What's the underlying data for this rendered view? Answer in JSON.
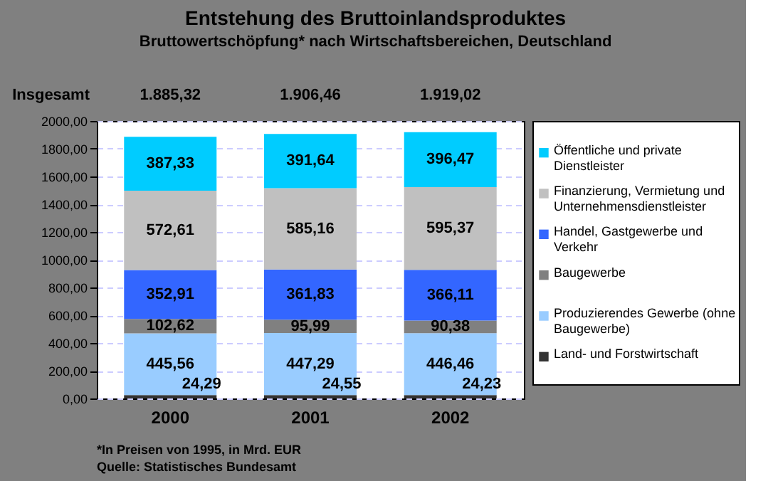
{
  "chart_data": {
    "type": "bar",
    "stacked": true,
    "title": "Entstehung des Bruttoinlandsproduktes",
    "subtitle": "Bruttowertschöpfung* nach Wirtschaftsbereichen, Deutschland",
    "categories": [
      "2000",
      "2001",
      "2002"
    ],
    "series": [
      {
        "name": "Land- und Forstwirtschaft",
        "color": "#333333",
        "values": [
          24.29,
          24.55,
          24.23
        ],
        "value_labels": [
          "24,29",
          "24,55",
          "24,23"
        ]
      },
      {
        "name": "Produzierendes Gewerbe (ohne Baugewerbe)",
        "color": "#99ccff",
        "values": [
          445.56,
          447.29,
          446.46
        ],
        "value_labels": [
          "445,56",
          "447,29",
          "446,46"
        ]
      },
      {
        "name": "Baugewerbe",
        "color": "#808080",
        "values": [
          102.62,
          95.99,
          90.38
        ],
        "value_labels": [
          "102,62",
          "95,99",
          "90,38"
        ]
      },
      {
        "name": "Handel, Gastgewerbe und Verkehr",
        "color": "#3366ff",
        "values": [
          352.91,
          361.83,
          366.11
        ],
        "value_labels": [
          "352,91",
          "361,83",
          "366,11"
        ]
      },
      {
        "name": "Finanzierung, Vermietung und Unternehmensdienstleister",
        "color": "#c0c0c0",
        "values": [
          572.61,
          585.16,
          595.37
        ],
        "value_labels": [
          "572,61",
          "585,16",
          "595,37"
        ]
      },
      {
        "name": "Öffentliche und private Dienstleister",
        "color": "#00ccff",
        "values": [
          387.33,
          391.64,
          396.47
        ],
        "value_labels": [
          "387,33",
          "391,64",
          "396,47"
        ]
      }
    ],
    "totals": [
      "1.885,32",
      "1.906,46",
      "1.919,02"
    ],
    "ylim": [
      0,
      2000
    ],
    "yticks": [
      {
        "value": 0,
        "label": "0,00"
      },
      {
        "value": 200,
        "label": "200,00"
      },
      {
        "value": 400,
        "label": "400,00"
      },
      {
        "value": 600,
        "label": "600,00"
      },
      {
        "value": 800,
        "label": "800,00"
      },
      {
        "value": 1000,
        "label": "1000,00"
      },
      {
        "value": 1200,
        "label": "1200,00"
      },
      {
        "value": 1400,
        "label": "1400,00"
      },
      {
        "value": 1600,
        "label": "1600,00"
      },
      {
        "value": 1800,
        "label": "1800,00"
      },
      {
        "value": 2000,
        "label": "2000,00"
      }
    ],
    "grid": "y",
    "legend": "right",
    "annotations": [
      "Insgesamt",
      "*In Preisen von 1995, in Mrd. EUR",
      "Quelle: Statistisches Bundesamt"
    ]
  }
}
